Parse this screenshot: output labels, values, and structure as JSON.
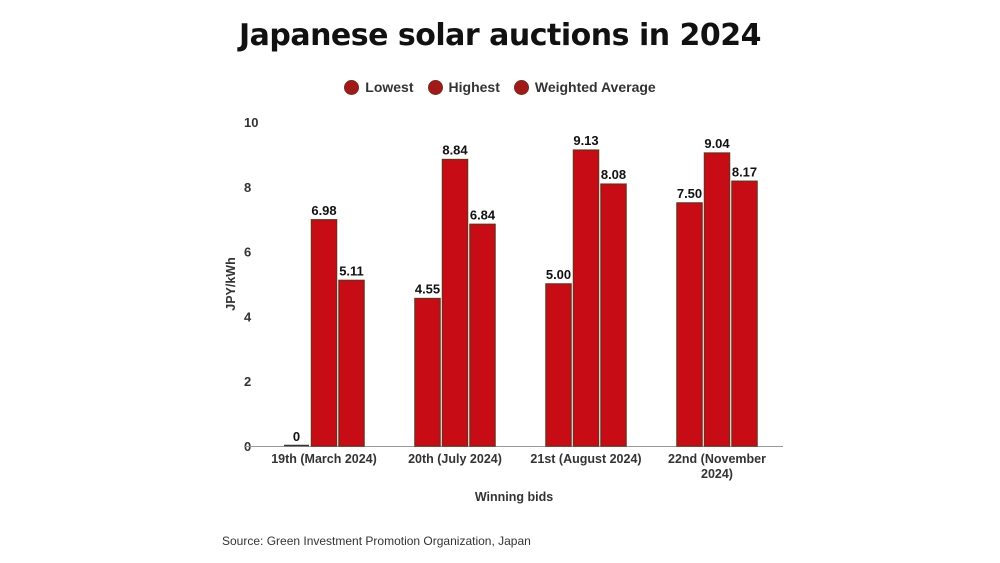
{
  "chart_data": {
    "type": "bar",
    "title": "Japanese solar auctions in 2024",
    "xlabel": "Winning bids",
    "ylabel": "JPY/kWh",
    "ylim": [
      0,
      10
    ],
    "yticks": [
      0,
      2,
      4,
      6,
      8,
      10
    ],
    "categories": [
      [
        "19th (March 2024)"
      ],
      [
        "20th (July 2024)"
      ],
      [
        "21st (August 2024)"
      ],
      [
        "22nd (November",
        "2024)"
      ]
    ],
    "series": [
      {
        "name": "Lowest",
        "values": [
          0,
          4.55,
          5.0,
          7.5
        ],
        "labels": [
          "0",
          "4.55",
          "5.00",
          "7.50"
        ]
      },
      {
        "name": "Highest",
        "values": [
          6.98,
          8.84,
          9.13,
          9.04
        ],
        "labels": [
          "6.98",
          "8.84",
          "9.13",
          "9.04"
        ]
      },
      {
        "name": "Weighted Average",
        "values": [
          5.11,
          6.84,
          8.08,
          8.17
        ],
        "labels": [
          "5.11",
          "6.84",
          "8.08",
          "8.17"
        ]
      }
    ],
    "colors": {
      "bar": "#c80c16",
      "bar_edge": "#7a2a1a"
    },
    "legend": "top",
    "grid": false,
    "source": "Source: Green Investment Promotion Organization, Japan"
  }
}
